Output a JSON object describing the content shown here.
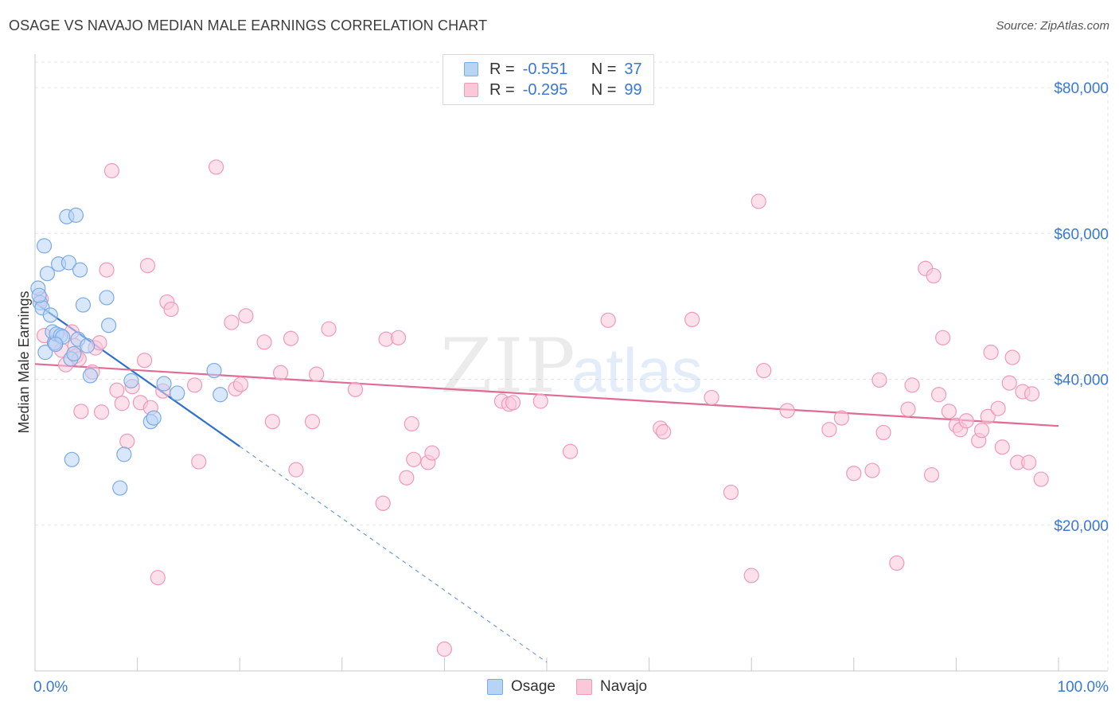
{
  "header": {
    "title": "OSAGE VS NAVAJO MEDIAN MALE EARNINGS CORRELATION CHART",
    "source": "Source: ZipAtlas.com"
  },
  "legend": {
    "rows": [
      {
        "r_label": "R =",
        "r_value": "-0.551",
        "n_label": "N =",
        "n_value": "37"
      },
      {
        "r_label": "R =",
        "r_value": "-0.295",
        "n_label": "N =",
        "n_value": "99"
      }
    ]
  },
  "bottom_legend": {
    "items": [
      "Osage",
      "Navajo"
    ]
  },
  "watermark": {
    "zip": "ZIP",
    "atlas": "atlas"
  },
  "colors": {
    "osage_fill": "#b8d4f5",
    "osage_stroke": "#7aaae6",
    "osage_line": "#2f6fcf",
    "navajo_fill": "#fbc8d8",
    "navajo_stroke": "#ef9ab6",
    "navajo_line": "#e06b94",
    "tick_label": "#3a78d4",
    "grid": "#e6e6e6"
  },
  "chart_data": {
    "type": "scatter",
    "title": "OSAGE VS NAVAJO MEDIAN MALE EARNINGS CORRELATION CHART",
    "xlabel": "",
    "ylabel": "Median Male Earnings",
    "xlim": [
      0,
      100
    ],
    "ylim": [
      0,
      83500
    ],
    "x_tick_labels": [
      {
        "value": 0,
        "label": "0.0%"
      },
      {
        "value": 100,
        "label": "100.0%"
      }
    ],
    "x_minor_ticks": [
      0,
      10,
      20,
      30,
      40,
      50,
      60,
      70,
      80,
      90,
      100
    ],
    "y_ticks": [
      {
        "value": 20000,
        "label": "$20,000"
      },
      {
        "value": 40000,
        "label": "$40,000"
      },
      {
        "value": 60000,
        "label": "$60,000"
      },
      {
        "value": 80000,
        "label": "$80,000"
      }
    ],
    "series": [
      {
        "name": "Osage",
        "R": -0.551,
        "N": 37,
        "trend": {
          "x0": 0,
          "y0": 50500,
          "x1": 20,
          "y1": 30800,
          "dash_to_x": 50,
          "dash_to_y": 1200
        },
        "points": [
          [
            0.3,
            52500
          ],
          [
            0.5,
            50500
          ],
          [
            0.7,
            49800
          ],
          [
            0.9,
            58300
          ],
          [
            1.2,
            54500
          ],
          [
            1.5,
            48800
          ],
          [
            1.7,
            46500
          ],
          [
            1.9,
            45000
          ],
          [
            2.1,
            46200
          ],
          [
            2.3,
            55800
          ],
          [
            2.5,
            46000
          ],
          [
            2.7,
            45800
          ],
          [
            3.1,
            62300
          ],
          [
            3.3,
            56000
          ],
          [
            3.5,
            42800
          ],
          [
            3.6,
            29000
          ],
          [
            3.8,
            43500
          ],
          [
            4.0,
            62500
          ],
          [
            4.2,
            45500
          ],
          [
            4.4,
            55000
          ],
          [
            4.7,
            50200
          ],
          [
            5.1,
            44600
          ],
          [
            5.4,
            40500
          ],
          [
            7.0,
            51200
          ],
          [
            7.2,
            47400
          ],
          [
            8.3,
            25100
          ],
          [
            8.7,
            29700
          ],
          [
            9.4,
            39800
          ],
          [
            11.3,
            34200
          ],
          [
            11.6,
            34700
          ],
          [
            12.6,
            39400
          ],
          [
            13.9,
            38100
          ],
          [
            17.5,
            41200
          ],
          [
            18.1,
            37900
          ],
          [
            1.0,
            43700
          ],
          [
            0.4,
            51500
          ],
          [
            2.0,
            44800
          ]
        ]
      },
      {
        "name": "Navajo",
        "R": -0.295,
        "N": 99,
        "trend": {
          "x0": 0,
          "y0": 42100,
          "x1": 100,
          "y1": 33600
        },
        "points": [
          [
            0.6,
            51000
          ],
          [
            0.9,
            46000
          ],
          [
            2.0,
            45000
          ],
          [
            2.6,
            44000
          ],
          [
            3.0,
            42000
          ],
          [
            3.6,
            46500
          ],
          [
            3.9,
            44600
          ],
          [
            4.0,
            43200
          ],
          [
            4.3,
            42800
          ],
          [
            4.5,
            35600
          ],
          [
            5.6,
            41000
          ],
          [
            5.9,
            44300
          ],
          [
            6.3,
            45000
          ],
          [
            6.5,
            35500
          ],
          [
            7.0,
            55000
          ],
          [
            7.5,
            68600
          ],
          [
            8.0,
            38500
          ],
          [
            8.5,
            36700
          ],
          [
            9.0,
            31500
          ],
          [
            9.5,
            39000
          ],
          [
            10.3,
            36800
          ],
          [
            10.7,
            42600
          ],
          [
            11.0,
            55600
          ],
          [
            11.3,
            36100
          ],
          [
            12.0,
            12800
          ],
          [
            12.5,
            38400
          ],
          [
            12.9,
            50600
          ],
          [
            13.3,
            49600
          ],
          [
            15.6,
            39200
          ],
          [
            16.0,
            28700
          ],
          [
            17.7,
            69100
          ],
          [
            19.2,
            47800
          ],
          [
            19.6,
            38700
          ],
          [
            20.1,
            39300
          ],
          [
            20.6,
            48700
          ],
          [
            22.4,
            45100
          ],
          [
            23.2,
            34200
          ],
          [
            24.0,
            40900
          ],
          [
            25.0,
            45600
          ],
          [
            25.5,
            27600
          ],
          [
            27.1,
            34200
          ],
          [
            27.5,
            40700
          ],
          [
            28.7,
            46900
          ],
          [
            31.3,
            38600
          ],
          [
            34.0,
            23000
          ],
          [
            34.3,
            45500
          ],
          [
            35.5,
            45700
          ],
          [
            36.3,
            26500
          ],
          [
            36.8,
            33900
          ],
          [
            37.0,
            29000
          ],
          [
            38.4,
            28600
          ],
          [
            38.8,
            29900
          ],
          [
            40.0,
            3000
          ],
          [
            45.6,
            37000
          ],
          [
            46.3,
            36600
          ],
          [
            46.7,
            36800
          ],
          [
            49.4,
            37000
          ],
          [
            52.3,
            30100
          ],
          [
            56.0,
            48100
          ],
          [
            61.1,
            33300
          ],
          [
            61.4,
            32800
          ],
          [
            64.2,
            48200
          ],
          [
            66.1,
            37500
          ],
          [
            68.0,
            24500
          ],
          [
            70.0,
            13100
          ],
          [
            70.7,
            64400
          ],
          [
            71.2,
            41200
          ],
          [
            73.5,
            35700
          ],
          [
            77.6,
            33100
          ],
          [
            78.8,
            34700
          ],
          [
            80.0,
            27100
          ],
          [
            81.8,
            27500
          ],
          [
            82.5,
            39900
          ],
          [
            82.9,
            32700
          ],
          [
            84.2,
            14800
          ],
          [
            85.3,
            35900
          ],
          [
            85.7,
            39200
          ],
          [
            87.0,
            55200
          ],
          [
            87.6,
            26900
          ],
          [
            87.8,
            54200
          ],
          [
            88.3,
            37900
          ],
          [
            88.7,
            45700
          ],
          [
            89.3,
            35600
          ],
          [
            90.0,
            33700
          ],
          [
            90.4,
            33100
          ],
          [
            91.0,
            34300
          ],
          [
            92.2,
            31600
          ],
          [
            92.5,
            33000
          ],
          [
            93.1,
            34900
          ],
          [
            93.4,
            43700
          ],
          [
            94.1,
            36000
          ],
          [
            94.5,
            30700
          ],
          [
            95.2,
            39500
          ],
          [
            95.5,
            43000
          ],
          [
            96.0,
            28600
          ],
          [
            96.5,
            38300
          ],
          [
            97.1,
            28600
          ],
          [
            97.4,
            38000
          ],
          [
            98.3,
            26300
          ]
        ]
      }
    ]
  }
}
